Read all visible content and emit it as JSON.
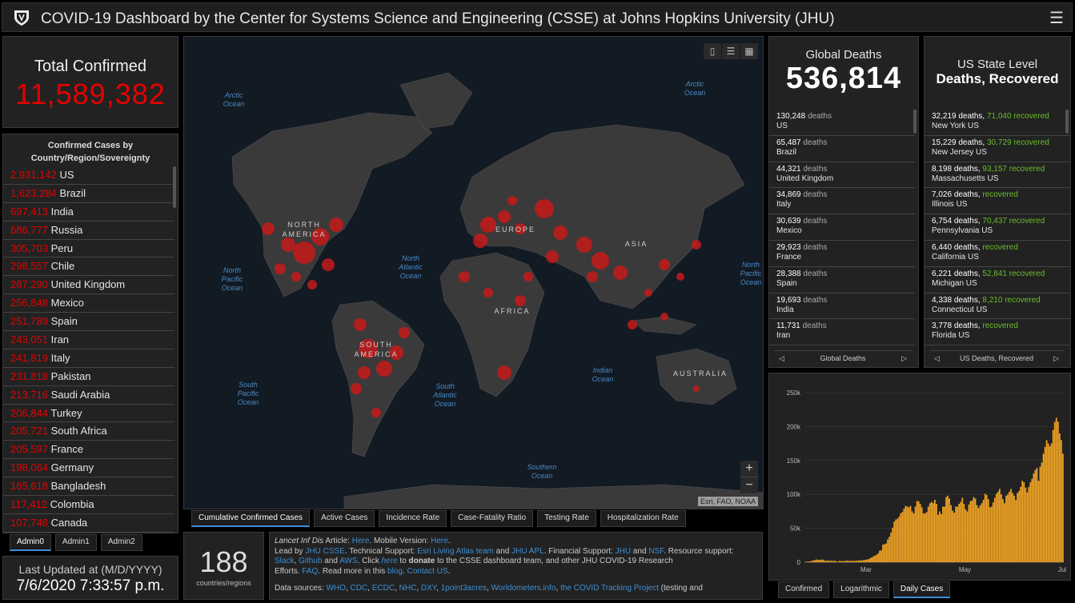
{
  "header": {
    "title": "COVID-19 Dashboard by the Center for Systems Science and Engineering (CSSE) at Johns Hopkins University (JHU)"
  },
  "total_confirmed": {
    "label": "Total Confirmed",
    "value": "11,589,382"
  },
  "confirmed_list": {
    "header_line1": "Confirmed Cases by",
    "header_line2": "Country/Region/Sovereignty",
    "rows": [
      {
        "num": "2,931,142",
        "name": "US"
      },
      {
        "num": "1,623,284",
        "name": "Brazil"
      },
      {
        "num": "697,413",
        "name": "India"
      },
      {
        "num": "686,777",
        "name": "Russia"
      },
      {
        "num": "305,703",
        "name": "Peru"
      },
      {
        "num": "298,557",
        "name": "Chile"
      },
      {
        "num": "287,290",
        "name": "United Kingdom"
      },
      {
        "num": "256,848",
        "name": "Mexico"
      },
      {
        "num": "251,789",
        "name": "Spain"
      },
      {
        "num": "243,051",
        "name": "Iran"
      },
      {
        "num": "241,819",
        "name": "Italy"
      },
      {
        "num": "231,818",
        "name": "Pakistan"
      },
      {
        "num": "213,716",
        "name": "Saudi Arabia"
      },
      {
        "num": "206,844",
        "name": "Turkey"
      },
      {
        "num": "205,721",
        "name": "South Africa"
      },
      {
        "num": "205,597",
        "name": "France"
      },
      {
        "num": "198,064",
        "name": "Germany"
      },
      {
        "num": "165,618",
        "name": "Bangladesh"
      },
      {
        "num": "117,412",
        "name": "Colombia"
      },
      {
        "num": "107,748",
        "name": "Canada"
      }
    ]
  },
  "admin_tabs": [
    "Admin0",
    "Admin1",
    "Admin2"
  ],
  "last_updated": {
    "label": "Last Updated at (M/D/YYYY)",
    "value": "7/6/2020 7:33:57 p.m."
  },
  "map": {
    "oceans": [
      "Arctic Ocean",
      "Arctic Ocean",
      "North Pacific Ocean",
      "North Atlantic Ocean",
      "North Pacific Ocean",
      "South Pacific Ocean",
      "South Atlantic Ocean",
      "Indian Ocean",
      "Southern Ocean"
    ],
    "continents": [
      "NORTH AMERICA",
      "EUROPE",
      "ASIA",
      "AFRICA",
      "SOUTH AMERICA",
      "AUSTRALIA"
    ],
    "attribution": "Esri, FAO, NOAA",
    "zoom_in": "+",
    "zoom_out": "−"
  },
  "map_tabs": [
    "Cumulative Confirmed Cases",
    "Active Cases",
    "Incidence Rate",
    "Case-Fatality Ratio",
    "Testing Rate",
    "Hospitalization Rate"
  ],
  "count": {
    "value": "188",
    "label": "countries/regions"
  },
  "info": {
    "p1a": "Lancet Inf Dis",
    "p1b": " Article: ",
    "p1c": "Here",
    "p1d": ". Mobile Version: ",
    "p1e": "Here",
    "p1f": ".",
    "p2a": "Lead by ",
    "p2b": "JHU CSSE",
    "p2c": ". Technical Support: ",
    "p2d": "Esri Living Atlas team",
    "p2e": " and ",
    "p2f": "JHU APL",
    "p2g": ". Financial Support: ",
    "p2h": "JHU",
    "p2i": " and ",
    "p2j": "NSF",
    "p2k": ". Resource support: ",
    "p3a": "Slack",
    "p3b": ", ",
    "p3c": "Github",
    "p3d": " and ",
    "p3e": "AWS",
    "p3f": ". Click ",
    "p3g": "here",
    "p3h": " to ",
    "p3i": "donate",
    "p3j": " to the CSSE dashboard team, and other JHU COVID-19 Research",
    "p4a": "Efforts. ",
    "p4b": "FAQ",
    "p4c": ". Read more in this ",
    "p4d": "blog",
    "p4e": ". ",
    "p4f": "Contact US",
    "p4g": ".",
    "p5a": "Data sources: ",
    "p5b": "WHO",
    "p5c": ", ",
    "p5d": "CDC",
    "p5e": ", ",
    "p5f": "ECDC",
    "p5g": ", ",
    "p5h": "NHC",
    "p5i": ", ",
    "p5j": "DXY",
    "p5k": ", ",
    "p5l": "1point3acres",
    "p5m": ", ",
    "p5n": "Worldometers.info",
    "p5o": ", ",
    "p5p": "the COVID Tracking Project",
    "p5q": " (testing and"
  },
  "global_deaths": {
    "label": "Global Deaths",
    "value": "536,814",
    "unit": "deaths",
    "rows": [
      {
        "num": "130,248",
        "place": "US"
      },
      {
        "num": "65,487",
        "place": "Brazil"
      },
      {
        "num": "44,321",
        "place": "United Kingdom"
      },
      {
        "num": "34,869",
        "place": "Italy"
      },
      {
        "num": "30,639",
        "place": "Mexico"
      },
      {
        "num": "29,923",
        "place": "France"
      },
      {
        "num": "28,388",
        "place": "Spain"
      },
      {
        "num": "19,693",
        "place": "India"
      },
      {
        "num": "11,731",
        "place": "Iran"
      }
    ],
    "nav_label": "Global Deaths"
  },
  "us_state": {
    "label1": "US State Level",
    "label2": "Deaths, Recovered",
    "unit_d": "deaths,",
    "unit_r": "recovered",
    "rows": [
      {
        "d": "32,219",
        "r": "71,040",
        "place": "New York US"
      },
      {
        "d": "15,229",
        "r": "30,729",
        "place": "New Jersey US"
      },
      {
        "d": "8,198",
        "r": "93,157",
        "place": "Massachusetts US"
      },
      {
        "d": "7,026",
        "r": "",
        "place": "Illinois US"
      },
      {
        "d": "6,754",
        "r": "70,437",
        "place": "Pennsylvania US"
      },
      {
        "d": "6,440",
        "r": "",
        "place": "California US"
      },
      {
        "d": "6,221",
        "r": "52,841",
        "place": "Michigan US"
      },
      {
        "d": "4,338",
        "r": "8,210",
        "place": "Connecticut US"
      },
      {
        "d": "3,778",
        "r": "",
        "place": "Florida US"
      }
    ],
    "nav_label": "US Deaths, Recovered"
  },
  "chart_tabs": [
    "Confirmed",
    "Logarithmic",
    "Daily Cases"
  ],
  "colors": {
    "accent": "#e60000",
    "recovered": "#6cbd2a",
    "link": "#3e8fd4",
    "bar": "#f5a623"
  },
  "chart_data": {
    "type": "bar",
    "title": "",
    "xlabel": "",
    "ylabel": "",
    "ylim": [
      0,
      250000
    ],
    "yticks": [
      "0",
      "50k",
      "100k",
      "150k",
      "200k",
      "250k"
    ],
    "xticks": [
      "Mar",
      "May",
      "Jul"
    ],
    "xtick_index": [
      38,
      99,
      159
    ],
    "values": [
      600,
      800,
      1000,
      1200,
      2000,
      2500,
      3100,
      3900,
      3600,
      3200,
      3800,
      3800,
      2600,
      2000,
      2500,
      2100,
      2200,
      2000,
      2100,
      1800,
      500,
      1900,
      1800,
      1600,
      1700,
      1900,
      2400,
      2100,
      2000,
      2000,
      1800,
      2100,
      2300,
      2500,
      2700,
      2700,
      3200,
      3500,
      3900,
      4500,
      5600,
      7100,
      8500,
      9800,
      10800,
      13000,
      17000,
      17500,
      26000,
      26500,
      27500,
      33500,
      37500,
      43500,
      51000,
      60000,
      63000,
      64000,
      67000,
      72000,
      74000,
      79000,
      83000,
      82000,
      81000,
      83000,
      75000,
      72000,
      82000,
      90000,
      90000,
      86000,
      81000,
      72000,
      72000,
      74000,
      82000,
      87000,
      89000,
      87000,
      92000,
      86000,
      70000,
      75000,
      71000,
      82000,
      82000,
      96000,
      98000,
      94000,
      84000,
      76000,
      73000,
      82000,
      82000,
      86000,
      89000,
      95000,
      86000,
      78000,
      75000,
      85000,
      90000,
      91000,
      96000,
      94000,
      84000,
      80000,
      84000,
      87000,
      92000,
      101000,
      99000,
      93000,
      81000,
      82000,
      88000,
      95000,
      101000,
      104000,
      108000,
      100000,
      93000,
      87000,
      98000,
      100000,
      104000,
      108000,
      102000,
      98000,
      92000,
      102000,
      105000,
      111000,
      120000,
      118000,
      110000,
      103000,
      111000,
      118000,
      123000,
      131000,
      136000,
      139000,
      120000,
      141000,
      147000,
      160000,
      170000,
      180000,
      175000,
      171000,
      175000,
      195000,
      207000,
      213000,
      207000,
      190000,
      180000,
      160000
    ]
  }
}
